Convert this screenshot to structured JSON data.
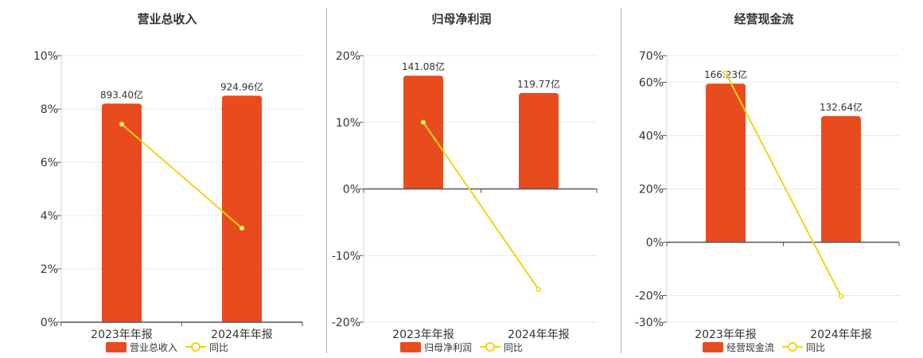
{
  "chart_data": [
    {
      "type": "bar",
      "title": "营业总收入",
      "categories": [
        "2023年年报",
        "2024年年报"
      ],
      "bar_series": {
        "name": "营业总收入",
        "value_labels": [
          "893.40亿",
          "924.96亿"
        ]
      },
      "line_series": {
        "name": "同比",
        "values": [
          7.43,
          3.53
        ]
      },
      "yaxis": {
        "min": 0,
        "max": 10,
        "ticks": [
          "0%",
          "2%",
          "4%",
          "6%",
          "8%",
          "10%"
        ],
        "tick_values": [
          0,
          2,
          4,
          6,
          8,
          10
        ]
      },
      "bar_heights_in_axis_units": [
        8.2,
        8.5
      ],
      "legend_position": "bottom",
      "grid": true
    },
    {
      "type": "bar",
      "title": "归母净利润",
      "categories": [
        "2023年年报",
        "2024年年报"
      ],
      "bar_series": {
        "name": "归母净利润",
        "value_labels": [
          "141.08亿",
          "119.77亿"
        ]
      },
      "line_series": {
        "name": "同比",
        "values": [
          10.0,
          -15.1
        ]
      },
      "yaxis": {
        "min": -20,
        "max": 20,
        "ticks": [
          "-20%",
          "-10%",
          "0%",
          "10%",
          "20%"
        ],
        "tick_values": [
          -20,
          -10,
          0,
          10,
          20
        ]
      },
      "bar_heights_in_axis_units": [
        17.0,
        14.4
      ],
      "legend_position": "bottom",
      "grid": true
    },
    {
      "type": "bar",
      "title": "经营现金流",
      "categories": [
        "2023年年报",
        "2024年年报"
      ],
      "bar_series": {
        "name": "经营现金流",
        "value_labels": [
          "166.23亿",
          "132.64亿"
        ]
      },
      "line_series": {
        "name": "同比",
        "values": [
          63.5,
          -20.2
        ]
      },
      "yaxis": {
        "min": -30,
        "max": 70,
        "ticks": [
          "-30%",
          "-20%",
          "0%",
          "20%",
          "40%",
          "60%",
          "70%"
        ],
        "tick_values": [
          -30,
          -20,
          0,
          20,
          40,
          60,
          70
        ]
      },
      "bar_heights_in_axis_units": [
        59.5,
        47.3
      ],
      "legend_position": "bottom",
      "grid": true
    }
  ],
  "colors": {
    "bar": "#e84c1e",
    "line": "#f2d21b",
    "grid": "#e4e8f0",
    "axis": "#555555",
    "text": "#333333",
    "divider": "#b0b0b0"
  }
}
